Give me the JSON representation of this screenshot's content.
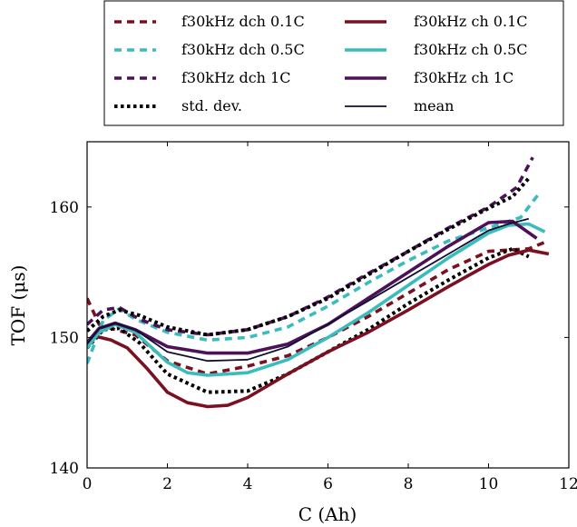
{
  "chart_data": {
    "type": "line",
    "xlabel": "C (Ah)",
    "ylabel": "TOF (μs)",
    "xlim": [
      0,
      12
    ],
    "ylim": [
      140,
      165
    ],
    "xticks": [
      0,
      2,
      4,
      6,
      8,
      10,
      12
    ],
    "yticks": [
      140,
      150,
      160
    ],
    "grid": false,
    "legend_placement": "top",
    "series": [
      {
        "name": "f30kHz dch 0.1C",
        "color": "#7b1020",
        "style": "dashed",
        "x": [
          0,
          0.3,
          0.7,
          1.2,
          2,
          3,
          4,
          5,
          6,
          7,
          8,
          9,
          10,
          11,
          11.4
        ],
        "y": [
          153,
          151,
          150.6,
          150.2,
          148.2,
          147.2,
          147.8,
          148.6,
          150,
          151.6,
          153.4,
          155.2,
          156.6,
          156.8,
          157.3
        ]
      },
      {
        "name": "f30kHz dch 0.5C",
        "color": "#3bbcbc",
        "style": "dashed",
        "x": [
          0,
          0.4,
          0.8,
          1.2,
          2,
          3,
          4,
          5,
          6,
          7,
          8,
          9,
          10,
          10.8,
          11.3
        ],
        "y": [
          148,
          151.3,
          152.2,
          151.4,
          150.4,
          149.8,
          150,
          150.8,
          152.4,
          154.2,
          155.9,
          157.4,
          158.4,
          159.2,
          161.2
        ]
      },
      {
        "name": "f30kHz dch 1C",
        "color": "#4d1158",
        "style": "dashed",
        "x": [
          0,
          0.4,
          0.8,
          1.3,
          2,
          3,
          4,
          5,
          6,
          7,
          8,
          9,
          10,
          10.7,
          11.1
        ],
        "y": [
          151,
          152.1,
          152.3,
          151.4,
          150.6,
          150.2,
          150.6,
          151.6,
          153.1,
          154.9,
          156.6,
          158.4,
          160,
          161.5,
          163.8
        ]
      },
      {
        "name": "std. dev.",
        "color": "#000000",
        "style": "dotted",
        "x": [
          0,
          0.4,
          0.8,
          1.3,
          2,
          3,
          4,
          5,
          6,
          7,
          8,
          9,
          10,
          10.6,
          11
        ],
        "y": [
          150.5,
          151.6,
          152.1,
          151.7,
          150.8,
          150.2,
          150.6,
          151.6,
          153,
          154.8,
          156.6,
          158.3,
          159.9,
          160.8,
          162.2
        ]
      },
      {
        "name": "std. dev.",
        "color": "#000000",
        "style": "dotted",
        "x": [
          0,
          0.4,
          0.8,
          1.3,
          2,
          3,
          4,
          5,
          6,
          7,
          8,
          9,
          10,
          10.6,
          11
        ],
        "y": [
          149.2,
          150.6,
          150.7,
          149.6,
          147.2,
          145.8,
          145.9,
          147.2,
          148.9,
          150.6,
          152.6,
          154.4,
          156.1,
          156.8,
          156.2
        ]
      },
      {
        "name": "f30kHz ch 0.1C",
        "color": "#7b1020",
        "style": "solid",
        "x": [
          0,
          0.2,
          0.6,
          1,
          1.5,
          2,
          2.5,
          3,
          3.5,
          4,
          5,
          6,
          7,
          8,
          9,
          10,
          10.5,
          11,
          11.5
        ],
        "y": [
          149.3,
          150.1,
          149.8,
          149.2,
          147.6,
          145.8,
          145,
          144.7,
          144.8,
          145.4,
          147.2,
          148.9,
          150.4,
          152.1,
          153.9,
          155.6,
          156.3,
          156.7,
          156.4
        ]
      },
      {
        "name": "f30kHz ch 0.5C",
        "color": "#3bbcbc",
        "style": "solid",
        "x": [
          0,
          0.3,
          0.7,
          1.2,
          2,
          2.5,
          3,
          4,
          5,
          6,
          7,
          8,
          9,
          10,
          10.5,
          11,
          11.4
        ],
        "y": [
          149.2,
          150.4,
          151,
          150.4,
          148.1,
          147.3,
          147.1,
          147.3,
          148.3,
          150,
          151.9,
          154,
          156.1,
          158,
          158.6,
          158.7,
          158.1
        ]
      },
      {
        "name": "f30kHz ch 1C",
        "color": "#4d1158",
        "style": "solid",
        "x": [
          0,
          0.3,
          0.7,
          1.2,
          2,
          3,
          4,
          5,
          6,
          7,
          8,
          9,
          10,
          10.6,
          11.2
        ],
        "y": [
          149.6,
          150.7,
          151.1,
          150.6,
          149.3,
          148.8,
          148.8,
          149.5,
          151,
          153,
          155,
          157,
          158.8,
          158.9,
          157.6
        ]
      },
      {
        "name": "mean",
        "color": "#0f1030",
        "style": "solid-thin",
        "x": [
          0,
          0.3,
          0.7,
          1.2,
          2,
          3,
          4,
          5,
          6,
          7,
          8,
          9,
          10,
          10.5,
          11
        ],
        "y": [
          149.5,
          150.7,
          151.1,
          150.6,
          148.9,
          148.2,
          148.3,
          149.3,
          151,
          152.8,
          154.6,
          156.4,
          158.2,
          158.7,
          159.1
        ]
      }
    ]
  }
}
